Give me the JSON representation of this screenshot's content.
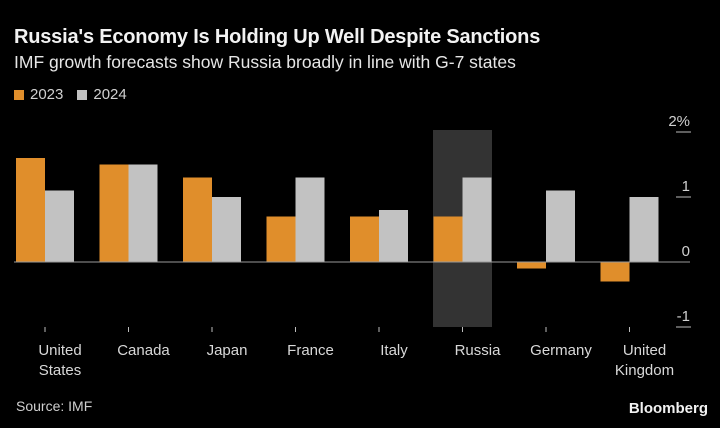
{
  "header": {
    "title": "Russia's Economy Is Holding Up Well Despite Sanctions",
    "subtitle": "IMF growth forecasts show Russia broadly in line with G-7 states"
  },
  "footer": {
    "source": "Source: IMF",
    "brand": "Bloomberg"
  },
  "colors": {
    "series_2023": "#e08e2b",
    "series_2024": "#c2c2c2",
    "highlight": "#333333",
    "background": "#000000"
  },
  "chart_data": {
    "type": "bar",
    "title": "Russia's Economy Is Holding Up Well Despite Sanctions",
    "subtitle": "IMF growth forecasts show Russia broadly in line with G-7 states",
    "xlabel": "",
    "ylabel": "",
    "categories": [
      [
        "United",
        "States"
      ],
      [
        "Canada"
      ],
      [
        "Japan"
      ],
      [
        "France"
      ],
      [
        "Italy"
      ],
      [
        "Russia"
      ],
      [
        "Germany"
      ],
      [
        "United",
        "Kingdom"
      ]
    ],
    "series": [
      {
        "name": "2023",
        "values": [
          1.6,
          1.5,
          1.3,
          0.7,
          0.7,
          0.7,
          -0.1,
          -0.3
        ]
      },
      {
        "name": "2024",
        "values": [
          1.1,
          1.5,
          1.0,
          1.3,
          0.8,
          1.3,
          1.1,
          1.0
        ]
      }
    ],
    "highlighted_category": "Russia",
    "ylim": [
      -1,
      2
    ],
    "yticks": [
      {
        "value": 2,
        "label": "2%"
      },
      {
        "value": 1,
        "label": "1"
      },
      {
        "value": 0,
        "label": "0"
      },
      {
        "value": -1,
        "label": "-1"
      }
    ],
    "grid": false,
    "legend": "top-left",
    "y_axis_side": "right"
  }
}
